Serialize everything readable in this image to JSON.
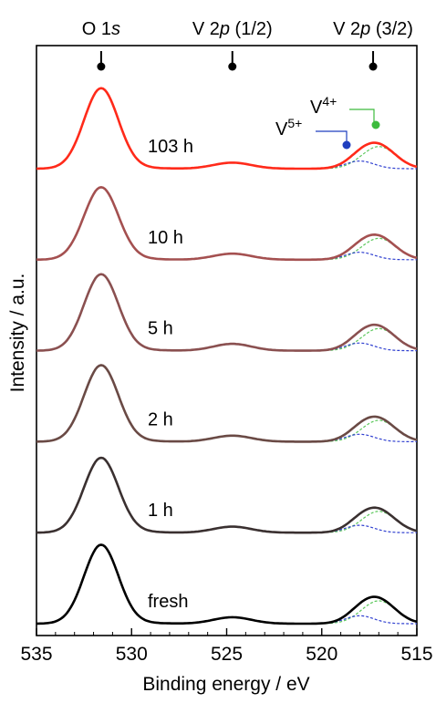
{
  "chart_data": {
    "type": "line",
    "xlabel": "Binding energy / eV",
    "ylabel": "Intensity / a.u.",
    "xlim": [
      535,
      515
    ],
    "x_ticks": [
      535,
      530,
      525,
      520,
      515
    ],
    "x_tick_labels": [
      "535",
      "530",
      "525",
      "520",
      "515"
    ],
    "reversed_x": true,
    "y_ticks": "none",
    "peak_markers": [
      {
        "label_pre": "O 1",
        "label_ital": "s",
        "label_post": "",
        "x": 531.6
      },
      {
        "label_pre": "V 2",
        "label_ital": "p",
        "label_post": " (1/2)",
        "x": 524.7
      },
      {
        "label_pre": "V 2",
        "label_ital": "p",
        "label_post": " (3/2)",
        "x": 517.3
      }
    ],
    "component_labels": [
      {
        "base": "V",
        "sup": "5+",
        "color": "#1f3fbf"
      },
      {
        "base": "V",
        "sup": "4+",
        "color": "#3dbb3d"
      }
    ],
    "series": [
      {
        "name": "103 h",
        "color": "#ff2a1a",
        "o1s_height": 1.0,
        "v12_height": 0.075,
        "v32_height": 0.29
      },
      {
        "name": "10 h",
        "color": "#a45050",
        "o1s_height": 0.9,
        "v12_height": 0.075,
        "v32_height": 0.28
      },
      {
        "name": "5 h",
        "color": "#8a5050",
        "o1s_height": 0.95,
        "v12_height": 0.085,
        "v32_height": 0.29
      },
      {
        "name": "2 h",
        "color": "#6a4a45",
        "o1s_height": 0.95,
        "v12_height": 0.075,
        "v32_height": 0.28
      },
      {
        "name": "1 h",
        "color": "#3a3030",
        "o1s_height": 0.93,
        "v12_height": 0.075,
        "v32_height": 0.28
      },
      {
        "name": "fresh",
        "color": "#000000",
        "o1s_height": 0.98,
        "v12_height": 0.08,
        "v32_height": 0.3
      }
    ],
    "component_colors": {
      "v5": "#3040d0",
      "v4": "#5cc85c",
      "fit": "#c8a060"
    },
    "grid": false,
    "legend": "none"
  }
}
